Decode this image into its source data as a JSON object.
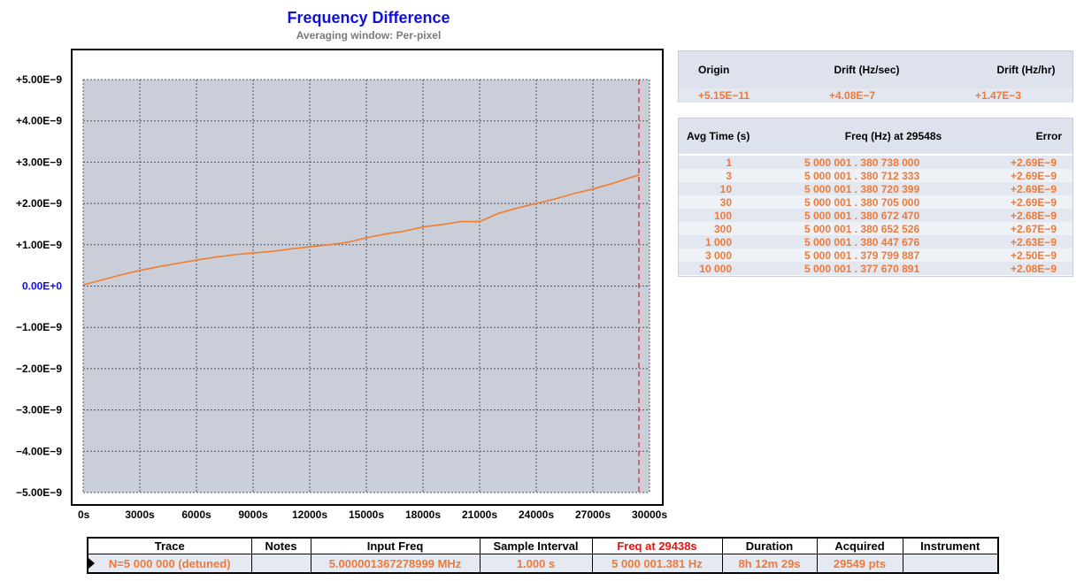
{
  "header": {
    "title": "Frequency Difference",
    "subtitle": "Averaging window: Per-pixel"
  },
  "colors": {
    "series": "#f47c2a",
    "plot_bg": "#c9ced9",
    "title": "#1010d8",
    "zero_label": "#1010d8",
    "highlight": "#ee1010",
    "cursor": "#e02020",
    "value_text": "#ee7a3a"
  },
  "chart_data": {
    "type": "line",
    "title": "Frequency Difference",
    "subtitle": "Averaging window: Per-pixel",
    "xlabel": "",
    "ylabel": "",
    "xlim": [
      0,
      30000
    ],
    "ylim": [
      -5e-09,
      5e-09
    ],
    "grid": true,
    "x_tick_labels": [
      "0s",
      "3000s",
      "6000s",
      "9000s",
      "12000s",
      "15000s",
      "18000s",
      "21000s",
      "24000s",
      "27000s",
      "30000s"
    ],
    "x_tick_values": [
      0,
      3000,
      6000,
      9000,
      12000,
      15000,
      18000,
      21000,
      24000,
      27000,
      30000
    ],
    "y_tick_labels": [
      "+5.00E−9",
      "+4.00E−9",
      "+3.00E−9",
      "+2.00E−9",
      "+1.00E−9",
      "0.00E+0",
      "−1.00E−9",
      "−2.00E−9",
      "−3.00E−9",
      "−4.00E−9",
      "−5.00E−9"
    ],
    "y_tick_values": [
      5e-09,
      4e-09,
      3e-09,
      2e-09,
      1e-09,
      0,
      -1e-09,
      -2e-09,
      -3e-09,
      -4e-09,
      -5e-09
    ],
    "cursor_x": 29438,
    "series": [
      {
        "x": [
          0,
          1000,
          2000,
          3000,
          4000,
          5000,
          6000,
          7000,
          8000,
          9000,
          10000,
          11000,
          12000,
          13000,
          14000,
          15000,
          16000,
          17000,
          18000,
          19000,
          20000,
          21000,
          22000,
          23000,
          24000,
          25000,
          26000,
          27000,
          28000,
          29000,
          29438
        ],
        "y": [
          3e-11,
          1.5e-10,
          2.7e-10,
          3.8e-10,
          4.7e-10,
          5.5e-10,
          6.3e-10,
          7e-10,
          7.6e-10,
          8e-10,
          8.4e-10,
          9e-10,
          9.5e-10,
          1e-09,
          1.06e-09,
          1.17e-09,
          1.26e-09,
          1.33e-09,
          1.43e-09,
          1.49e-09,
          1.56e-09,
          1.56e-09,
          1.76e-09,
          1.89e-09,
          2e-09,
          2.11e-09,
          2.24e-09,
          2.35e-09,
          2.48e-09,
          2.63e-09,
          2.69e-09
        ]
      }
    ]
  },
  "drift_table": {
    "headers": [
      "Origin",
      "Drift (Hz/sec)",
      "Drift (Hz/hr)"
    ],
    "values": [
      "+5.15E−11",
      "+4.08E−7",
      "+1.47E−3"
    ]
  },
  "avg_table": {
    "headers": [
      "Avg Time (s)",
      "Freq (Hz) at 29548s",
      "Error"
    ],
    "rows": [
      {
        "avg": "1",
        "freq": "5 000 001 . 380 738 000",
        "err": "+2.69E−9"
      },
      {
        "avg": "3",
        "freq": "5 000 001 . 380 712 333",
        "err": "+2.69E−9"
      },
      {
        "avg": "10",
        "freq": "5 000 001 . 380 720 399",
        "err": "+2.69E−9"
      },
      {
        "avg": "30",
        "freq": "5 000 001 . 380 705 000",
        "err": "+2.69E−9"
      },
      {
        "avg": "100",
        "freq": "5 000 001 . 380 672 470",
        "err": "+2.68E−9"
      },
      {
        "avg": "300",
        "freq": "5 000 001 . 380 652 526",
        "err": "+2.67E−9"
      },
      {
        "avg": "1 000",
        "freq": "5 000 001 . 380 447 676",
        "err": "+2.63E−9"
      },
      {
        "avg": "3 000",
        "freq": "5 000 001 . 379 799 887",
        "err": "+2.50E−9"
      },
      {
        "avg": "10 000",
        "freq": "5 000 001 . 377 670 891",
        "err": "+2.08E−9"
      }
    ]
  },
  "trace_table": {
    "headers": {
      "trace": "Trace",
      "notes": "Notes",
      "input_freq": "Input Freq",
      "sample_interval": "Sample Interval",
      "freq_at": "Freq at 29438s",
      "duration": "Duration",
      "acquired": "Acquired",
      "instrument": "Instrument"
    },
    "row": {
      "trace": "N=5 000 000 (detuned)",
      "notes": "",
      "input_freq": "5.000001367278999 MHz",
      "sample_interval": "1.000 s",
      "freq_at": "5 000 001.381 Hz",
      "duration": "8h 12m 29s",
      "acquired": "29549 pts",
      "instrument": ""
    }
  }
}
